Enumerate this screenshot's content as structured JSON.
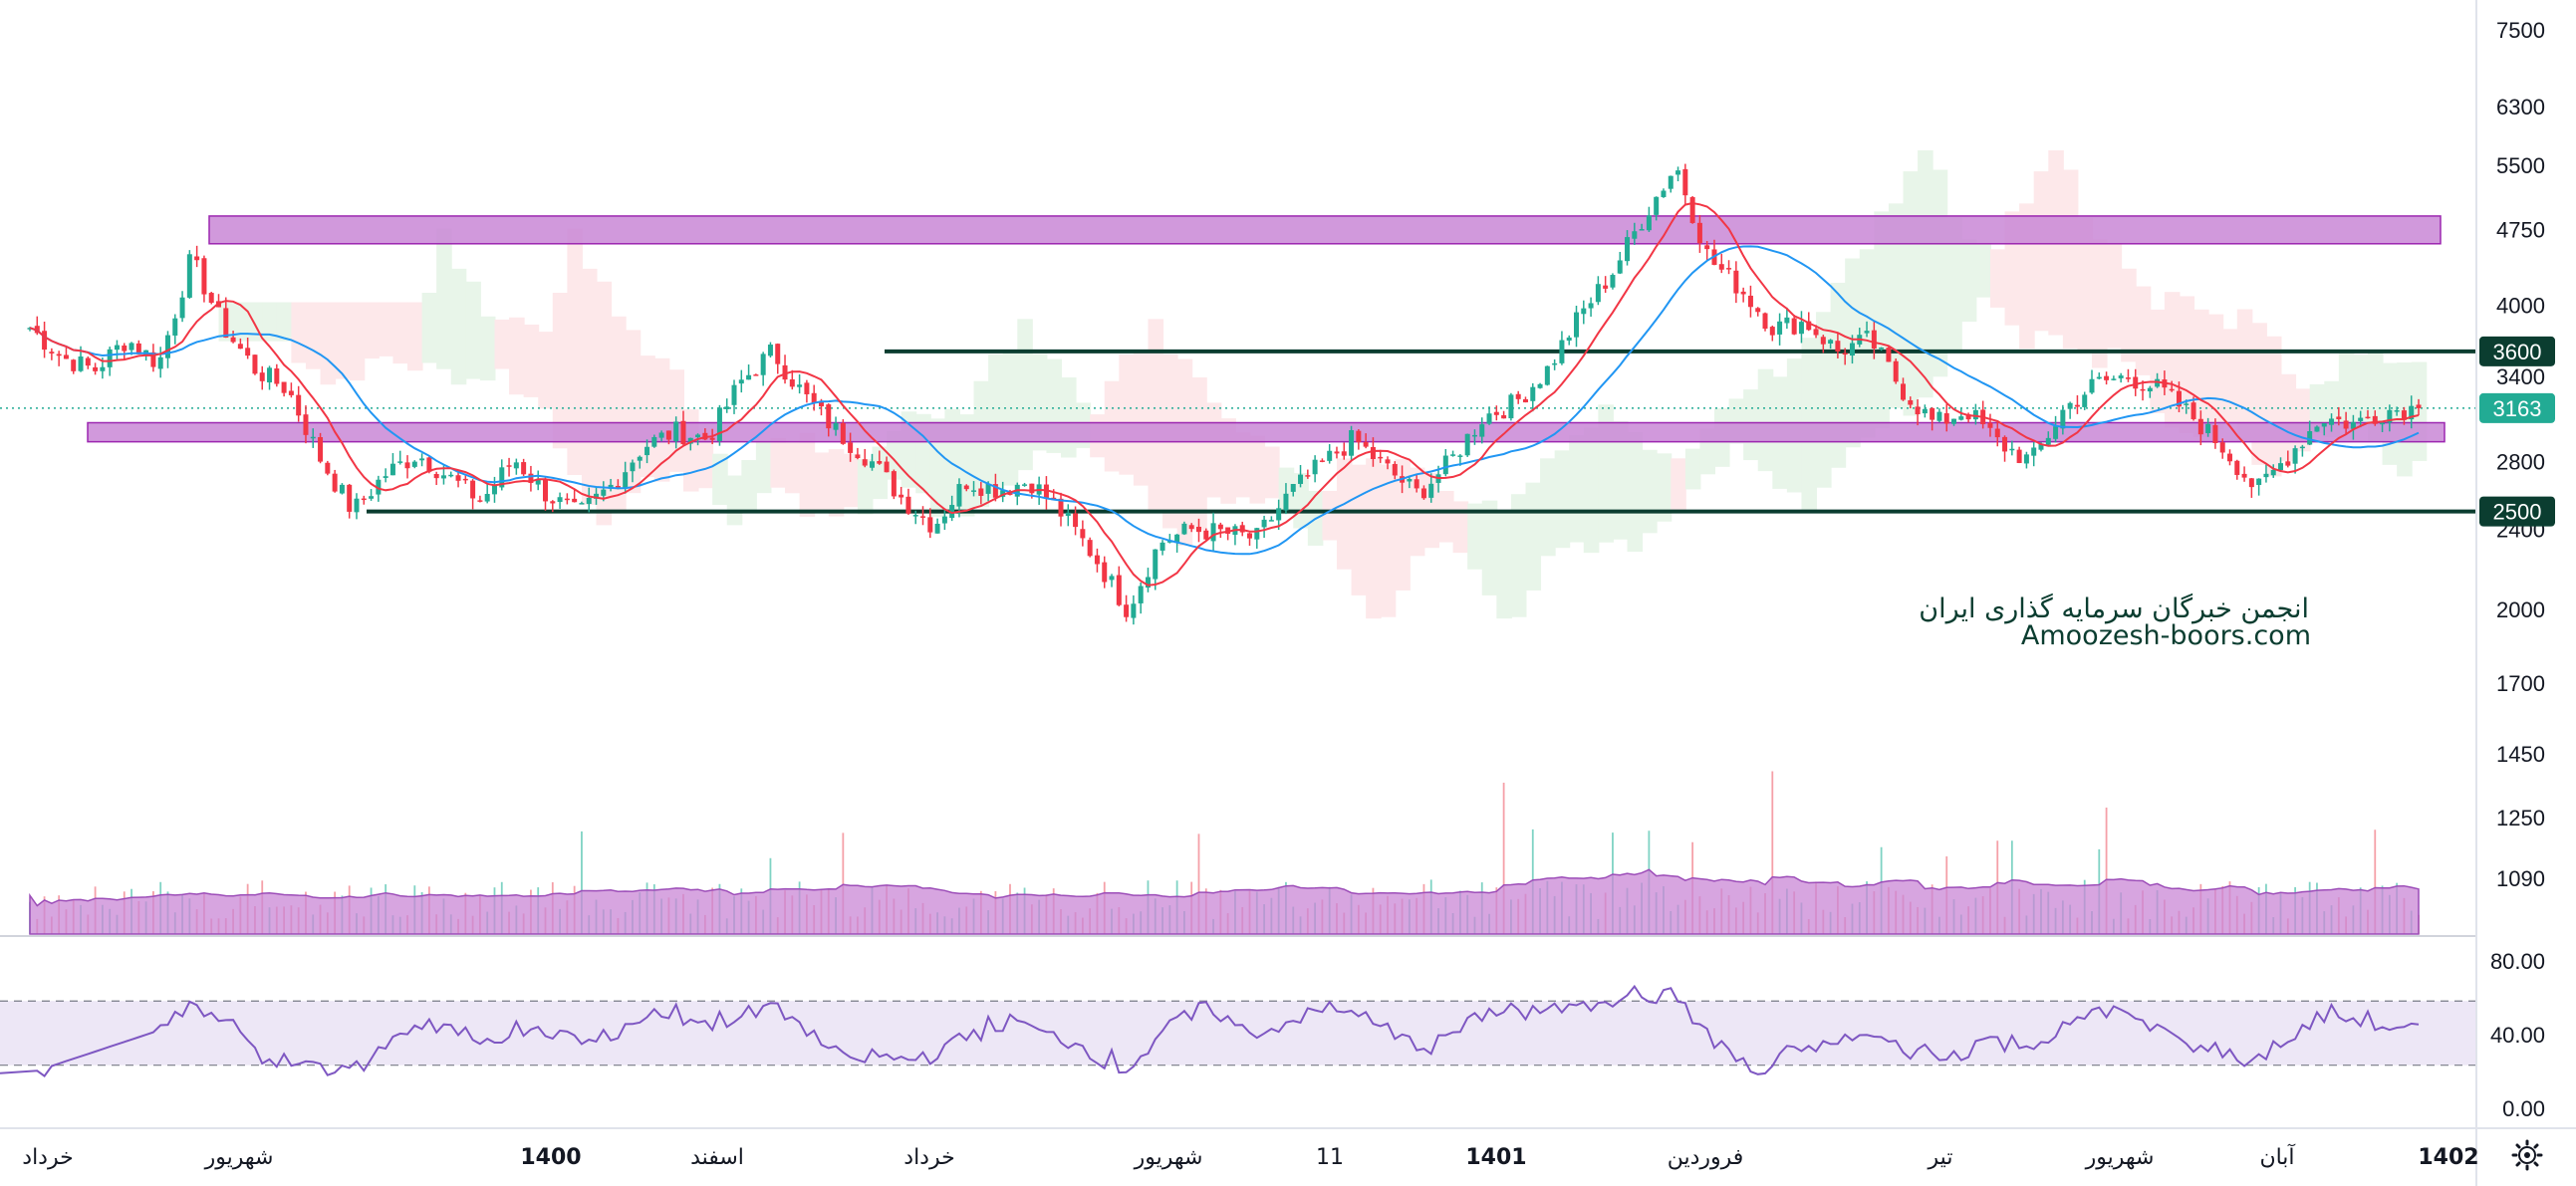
{
  "chart_data": {
    "type": "candlestick",
    "price_axis": {
      "scale": "log",
      "ticks": [
        "7500",
        "6300",
        "5500",
        "4750",
        "4000",
        "3400",
        "2800",
        "2400",
        "2000",
        "1700",
        "1450",
        "1250",
        "1090"
      ],
      "tick_values": [
        7500,
        6300,
        5500,
        4750,
        4000,
        3400,
        2800,
        2400,
        2000,
        1700,
        1450,
        1250,
        1090
      ]
    },
    "rsi_axis": {
      "ticks": [
        "80.00",
        "40.00",
        "0.00"
      ],
      "tick_values": [
        80,
        40,
        0
      ],
      "bands": [
        70,
        30
      ]
    },
    "time_axis": {
      "labels": [
        {
          "text": "خرداد",
          "bold": false
        },
        {
          "text": "شهریور",
          "bold": false
        },
        {
          "text": "1400",
          "bold": true
        },
        {
          "text": "اسفند",
          "bold": false
        },
        {
          "text": "خرداد",
          "bold": false
        },
        {
          "text": "شهریور",
          "bold": false
        },
        {
          "text": "11",
          "bold": false
        },
        {
          "text": "1401",
          "bold": true
        },
        {
          "text": "فروردین",
          "bold": false
        },
        {
          "text": "تیر",
          "bold": false
        },
        {
          "text": "شهریور",
          "bold": false
        },
        {
          "text": "آبان",
          "bold": false
        },
        {
          "text": "1402",
          "bold": true
        }
      ]
    },
    "price_path": [
      3800,
      3550,
      3450,
      3700,
      3500,
      4450,
      3800,
      3450,
      3300,
      2820,
      2500,
      2720,
      2850,
      2700,
      2560,
      2820,
      2600,
      2480,
      2650,
      2900,
      3000,
      2950,
      3350,
      3600,
      3250,
      3000,
      2820,
      2580,
      2420,
      2680,
      2630,
      2680,
      2480,
      2250,
      2000,
      2330,
      2400,
      2380,
      2350,
      2600,
      2780,
      2950,
      2760,
      2600,
      2800,
      3100,
      3200,
      3450,
      3900,
      4300,
      4900,
      5500,
      4450,
      4150,
      3800,
      3850,
      3600,
      3700,
      3300,
      3050,
      3150,
      2920,
      2800,
      3150,
      3350,
      3400,
      3300,
      3100,
      2880,
      2620,
      2850,
      3100,
      3050,
      3150,
      3163
    ],
    "horizontal_levels": [
      {
        "value": 3600,
        "label": "3600",
        "color": "#0b3d30"
      },
      {
        "value": 2500,
        "label": "2500",
        "color": "#0b3d30"
      }
    ],
    "zones": [
      {
        "low": 4600,
        "high": 4900,
        "color": "#c987d6"
      },
      {
        "low": 2930,
        "high": 3060,
        "color": "#c987d6"
      }
    ],
    "last_price": {
      "value": 3163,
      "label": "3163",
      "color": "#22ab94"
    },
    "moving_averages": [
      {
        "period": "short",
        "color": "#f23645"
      },
      {
        "period": "long",
        "color": "#2196f3"
      }
    ],
    "colors": {
      "up": "#22ab94",
      "down": "#f23645",
      "volume_ma": "#ad5ec9",
      "rsi": "#7e57c2",
      "rsi_band": "#ede7f6",
      "cloud_bull": "#e8f5e9",
      "cloud_bear": "#fde8ea"
    }
  },
  "watermark": {
    "line1": "انجمن خبرگان سرمایه گذاری ایران",
    "line2": "Amoozesh-boors.com"
  },
  "settings_icon": "gear-icon"
}
